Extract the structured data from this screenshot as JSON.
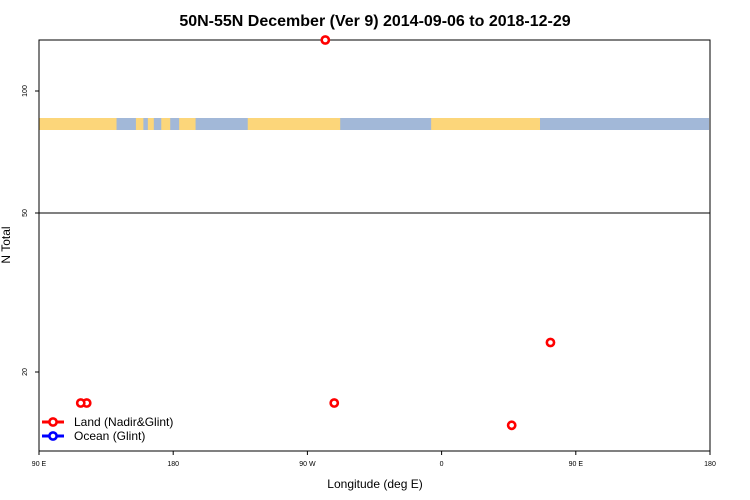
{
  "chart_data": {
    "type": "scatter",
    "title": "50N-55N December (Ver 9)   2014-09-06 to 2018-12-29",
    "xlabel": "Longitude (deg E)",
    "ylabel": "N Total",
    "x_tick_labels": [
      "90 E",
      "180",
      "90 W",
      "0",
      "90 E",
      "180"
    ],
    "y_tick_labels": [
      "20",
      "50",
      "100"
    ],
    "legend": {
      "position": "bottom-left",
      "entries": [
        {
          "label": "Land (Nadir&Glint)",
          "color": "#ff0000"
        },
        {
          "label": "Ocean (Glint)",
          "color": "#0000ff"
        }
      ]
    },
    "series": [
      {
        "name": "Land (Nadir&Glint)",
        "color": "#ff0000",
        "points": [
          {
            "lon": 122,
            "n": 16
          },
          {
            "lon": -78,
            "n": 130
          },
          {
            "lon": -72,
            "n": 16
          },
          {
            "lon": 47,
            "n": 14
          },
          {
            "lon": 73,
            "n": 23
          },
          {
            "lon": 118,
            "n": 16
          }
        ]
      },
      {
        "name": "Ocean (Glint)",
        "color": "#0000ff",
        "points": []
      }
    ],
    "surface_band": {
      "land_color": "#fcd67a",
      "ocean_color": "#a2b8d8",
      "land_ranges_lon": [
        [
          90,
          142
        ],
        [
          155,
          160
        ],
        [
          -176,
          -165
        ],
        [
          -130,
          -68
        ],
        [
          -7,
          66
        ],
        [
          74,
          143
        ],
        [
          163,
          167
        ],
        [
          172,
          178
        ]
      ]
    }
  }
}
